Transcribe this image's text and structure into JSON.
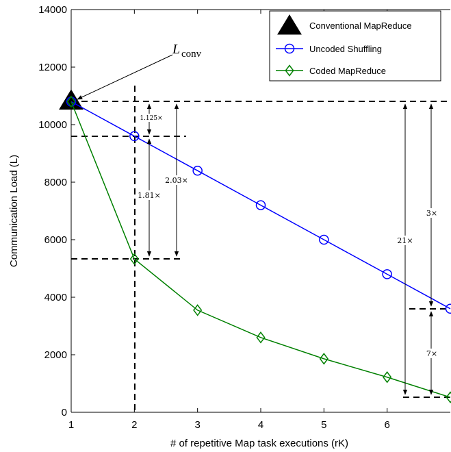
{
  "chart_data": {
    "type": "line",
    "xlabel": "# of repetitive Map task executions (rK)",
    "ylabel": "Communication Load (L)",
    "xlim": [
      1,
      7
    ],
    "ylim": [
      0,
      14000
    ],
    "xticks": [
      1,
      2,
      3,
      4,
      5,
      6
    ],
    "yticks": [
      0,
      2000,
      4000,
      6000,
      8000,
      10000,
      12000,
      14000
    ],
    "grid": false,
    "legend_position": "top-right",
    "series": [
      {
        "name": "Conventional MapReduce",
        "marker": "filled-triangle",
        "color": "#000000",
        "x": [
          1
        ],
        "y": [
          10800
        ]
      },
      {
        "name": "Uncoded Shuffling",
        "marker": "circle",
        "color": "#0000ff",
        "x": [
          1,
          2,
          3,
          4,
          5,
          6,
          7
        ],
        "y": [
          10800,
          9600,
          8400,
          7200,
          6000,
          4800,
          3600
        ]
      },
      {
        "name": "Coded MapReduce",
        "marker": "diamond",
        "color": "#008000",
        "x": [
          1,
          2,
          3,
          4,
          5,
          6,
          7
        ],
        "y": [
          10800,
          5330,
          3550,
          2600,
          1860,
          1220,
          520
        ]
      }
    ],
    "annotations": {
      "lconv_main": "L",
      "lconv_sub": "conv",
      "ratios": [
        "1.125×",
        "1.81×",
        "2.03×",
        "21×",
        "3×",
        "7×"
      ]
    }
  }
}
